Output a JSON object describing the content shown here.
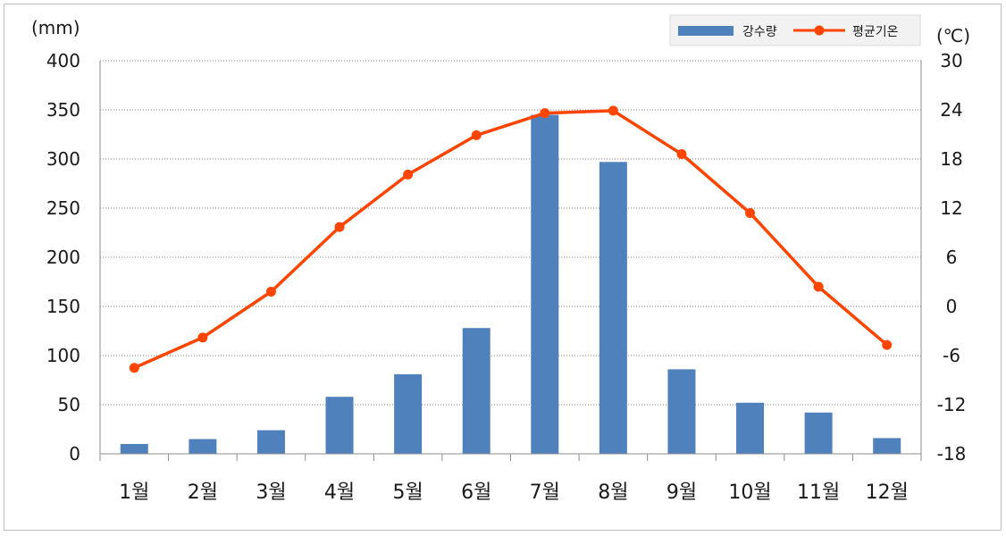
{
  "chart_data": {
    "type": "bar+line",
    "categories": [
      "1월",
      "2월",
      "3월",
      "4월",
      "5월",
      "6월",
      "7월",
      "8월",
      "9월",
      "10월",
      "11월",
      "12월"
    ],
    "series": [
      {
        "name": "강수량",
        "type": "bar",
        "axis": "left",
        "color": "#4f81bd",
        "values": [
          10,
          15,
          24,
          58,
          81,
          128,
          345,
          297,
          86,
          52,
          42,
          16
        ]
      },
      {
        "name": "평균기온",
        "type": "line",
        "axis": "right",
        "color": "#ff4500",
        "values": [
          -7.5,
          -3.8,
          1.8,
          9.7,
          16.1,
          20.9,
          23.6,
          23.9,
          18.6,
          11.4,
          2.4,
          -4.7
        ]
      }
    ],
    "y_left": {
      "label": "(mm)",
      "ylim": [
        0,
        400
      ],
      "ticks": [
        "0",
        "50",
        "100",
        "150",
        "200",
        "250",
        "300",
        "350",
        "400"
      ]
    },
    "y_right": {
      "label": "(℃)",
      "ylim": [
        -18,
        30
      ],
      "ticks": [
        "-18",
        "-12",
        "-6",
        "0",
        "6",
        "12",
        "18",
        "24",
        "30"
      ]
    },
    "grid": "horizontal-dotted",
    "legend_position": "top-right"
  }
}
